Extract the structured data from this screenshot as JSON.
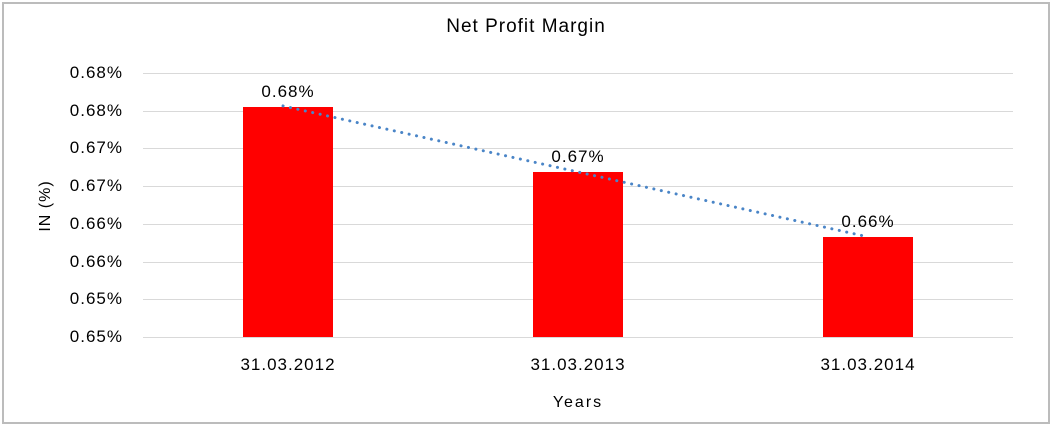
{
  "chart_data": {
    "type": "bar",
    "title": "Net Profit Margin",
    "xlabel": "Years",
    "ylabel": "IN (%)",
    "categories": [
      "31.03.2012",
      "31.03.2013",
      "31.03.2014"
    ],
    "values": [
      0.6755,
      0.6669,
      0.6582
    ],
    "data_labels": [
      "0.68%",
      "0.67%",
      "0.66%"
    ],
    "ylim": [
      0.645,
      0.68
    ],
    "y_tick_step": 0.005,
    "y_tick_labels_top_to_bottom": [
      "0.68%",
      "0.68%",
      "0.67%",
      "0.67%",
      "0.66%",
      "0.66%",
      "0.65%",
      "0.65%"
    ],
    "grid": true,
    "legend": "none",
    "bar_color": "#ff0000",
    "gridline_color": "#d9d9d9",
    "text_color": "#000000",
    "frame_border_color": "#bcbcbc",
    "trendline": {
      "type": "linear",
      "style": "dotted",
      "color": "#4a85c7",
      "from_label": "0.68%",
      "to_label": "0.66%"
    }
  }
}
